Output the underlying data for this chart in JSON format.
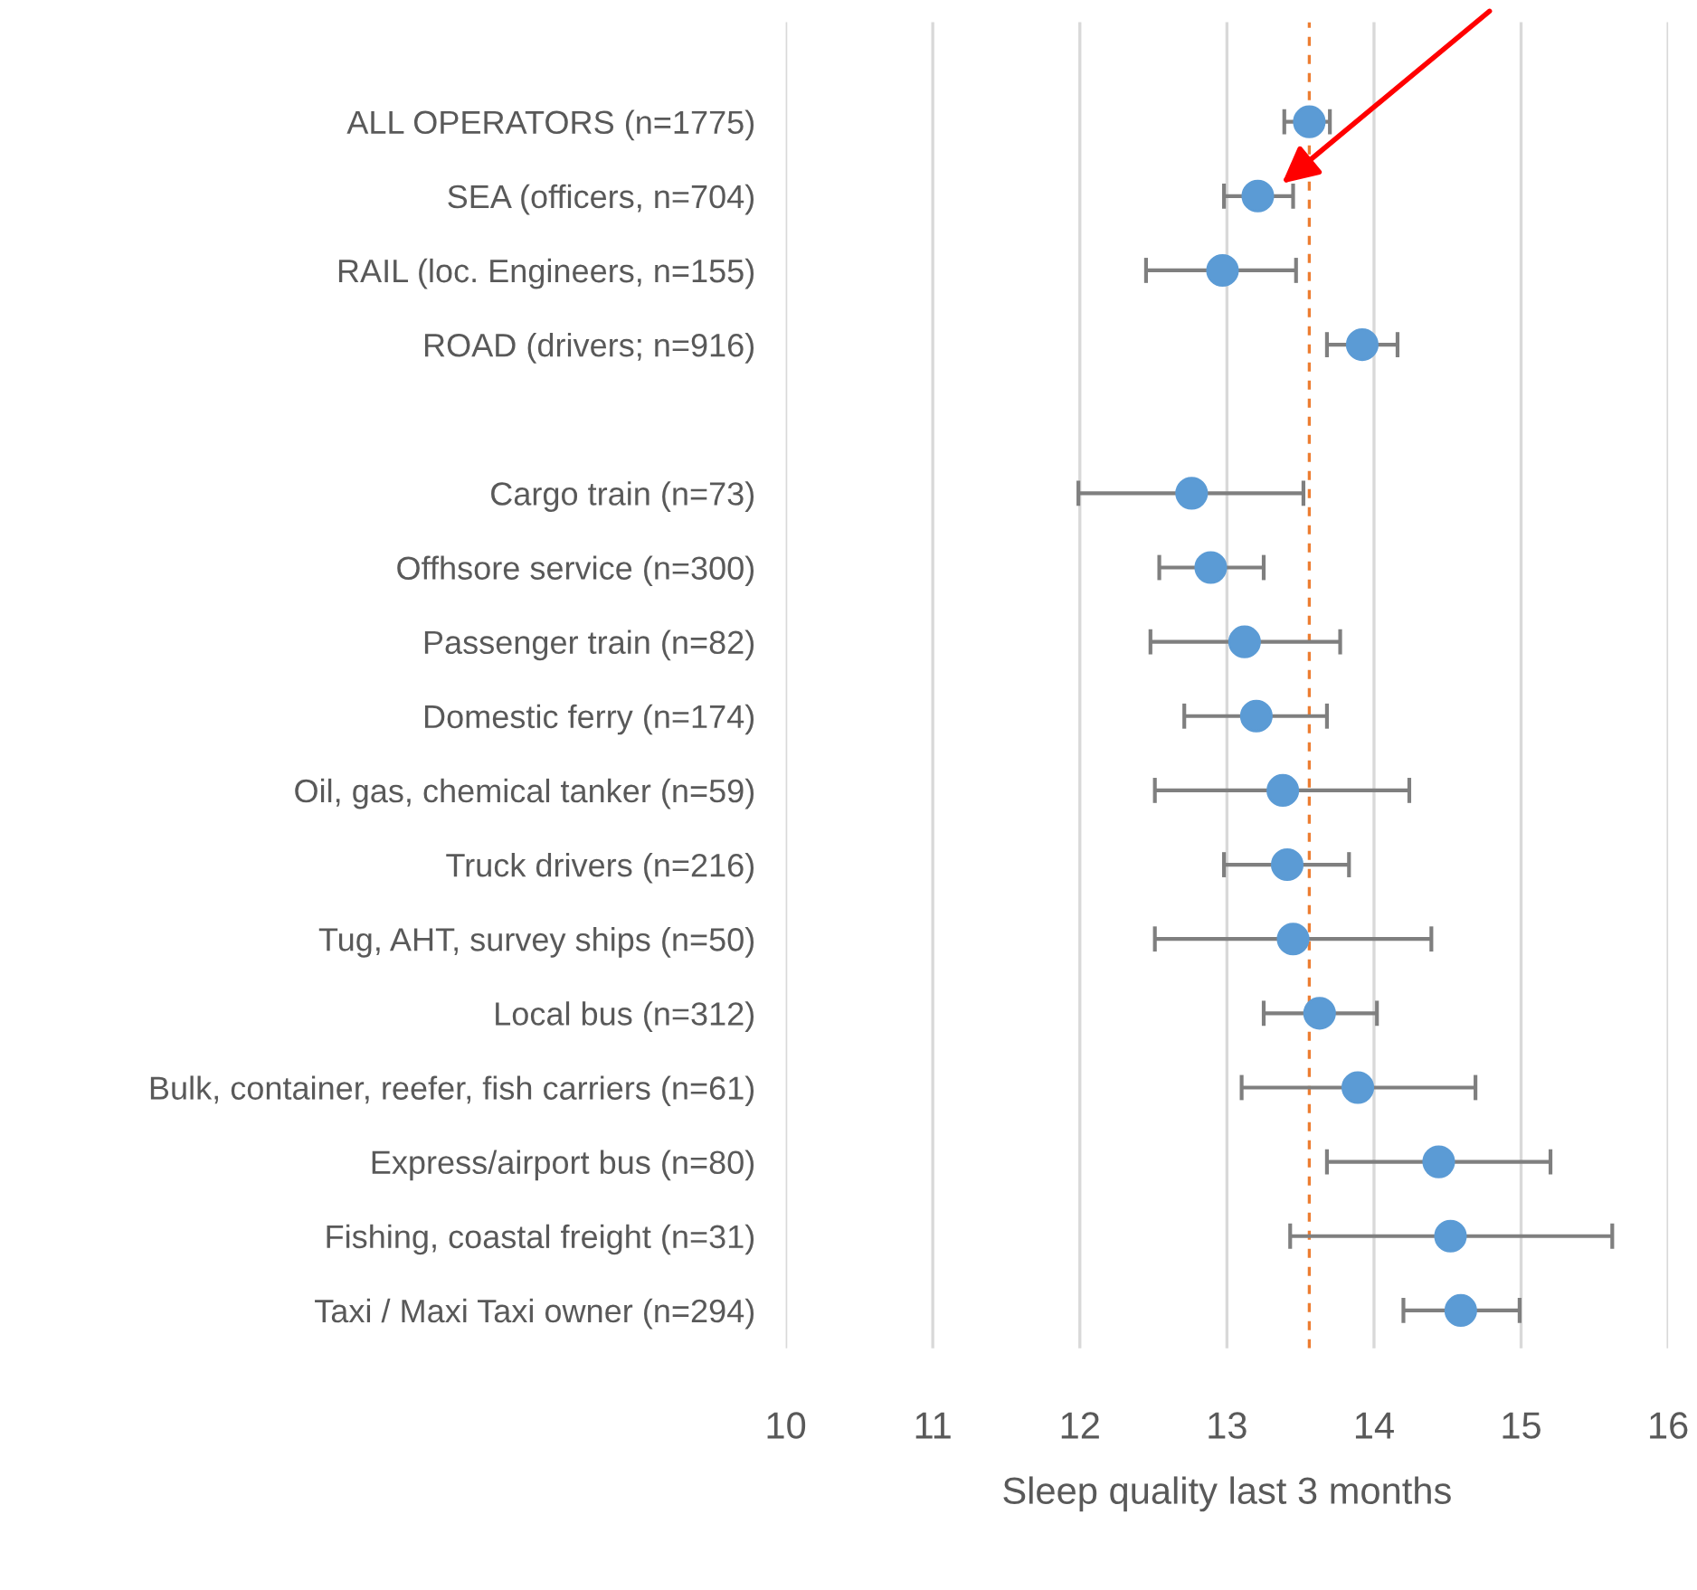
{
  "chart_data": {
    "type": "scatter",
    "orientation": "horizontal",
    "categories": [
      "ALL OPERATORS (n=1775)",
      "SEA (officers, n=704)",
      "RAIL (loc. Engineers, n=155)",
      "ROAD (drivers; n=916)",
      null,
      "Cargo train (n=73)",
      "Offhsore service (n=300)",
      "Passenger train (n=82)",
      "Domestic ferry (n=174)",
      "Oil, gas, chemical tanker (n=59)",
      "Truck drivers (n=216)",
      "Tug, AHT, survey ships (n=50)",
      "Local bus (n=312)",
      "Bulk, container, reefer, fish carriers (n=61)",
      "Express/airport bus (n=80)",
      "Fishing, coastal freight (n=31)",
      "Taxi / Maxi Taxi owner (n=294)"
    ],
    "values": [
      13.56,
      13.21,
      12.97,
      13.92,
      null,
      12.76,
      12.89,
      13.12,
      13.2,
      13.38,
      13.41,
      13.45,
      13.63,
      13.89,
      14.44,
      14.52,
      14.59
    ],
    "errors": [
      [
        13.39,
        13.7
      ],
      [
        12.98,
        13.45
      ],
      [
        12.45,
        13.47
      ],
      [
        13.68,
        14.16
      ],
      null,
      [
        11.99,
        13.52
      ],
      [
        12.54,
        13.25
      ],
      [
        12.48,
        13.77
      ],
      [
        12.71,
        13.68
      ],
      [
        12.51,
        14.24
      ],
      [
        12.98,
        13.83
      ],
      [
        12.51,
        14.39
      ],
      [
        13.25,
        14.02
      ],
      [
        13.1,
        14.69
      ],
      [
        13.68,
        15.2
      ],
      [
        13.43,
        15.62
      ],
      [
        14.2,
        14.99
      ]
    ],
    "color": "#5b9bd5",
    "marker": "circle",
    "xlabel": "Sleep quality last 3 months",
    "xlim": [
      10,
      16
    ],
    "xticks": [
      10,
      11,
      12,
      13,
      14,
      15,
      16
    ],
    "grid": "x",
    "ref_lines": [
      {
        "axis": "x",
        "value": 13.56,
        "color": "#ed7d31",
        "line_style": "dashed"
      }
    ]
  }
}
